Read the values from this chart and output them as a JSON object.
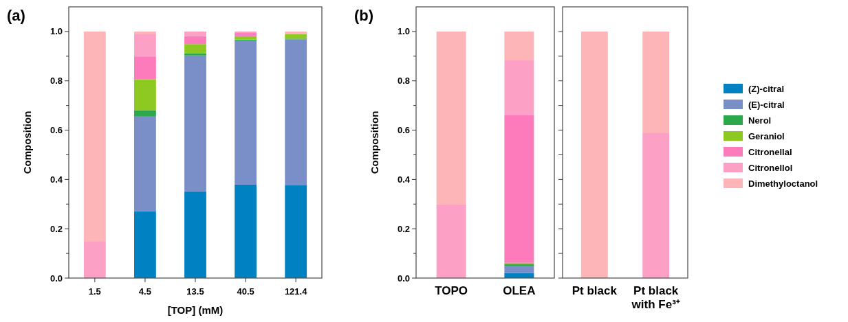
{
  "chart_data": [
    {
      "type": "bar",
      "title": "(a)",
      "xlabel": "[TOP] (mM)",
      "ylabel": "Composition",
      "stacked": true,
      "categories": [
        "1.5",
        "4.5",
        "13.5",
        "40.5",
        "121.4"
      ],
      "ylim": [
        0,
        1.1
      ],
      "yticks": [
        {
          "value": 0,
          "label": "0.0"
        },
        {
          "value": 0.1,
          "label": null
        },
        {
          "value": 0.2,
          "label": "0.2"
        },
        {
          "value": 0.3,
          "label": null
        },
        {
          "value": 0.4,
          "label": "0.4"
        },
        {
          "value": 0.5,
          "label": null
        },
        {
          "value": 0.6,
          "label": "0.6"
        },
        {
          "value": 0.7,
          "label": null
        },
        {
          "value": 0.8,
          "label": "0.8"
        },
        {
          "value": 0.9,
          "label": null
        },
        {
          "value": 1,
          "label": "1.0"
        }
      ],
      "series": [
        {
          "color": "#0081c2",
          "values": [
            0,
            0.271,
            0.352,
            0.379,
            0.376
          ]
        },
        {
          "color": "#7a8fc8",
          "values": [
            0,
            0.384,
            0.551,
            0.584,
            0.592
          ]
        },
        {
          "color": "#2ba84a",
          "values": [
            0,
            0.026,
            0.008,
            0.004,
            0.003
          ]
        },
        {
          "color": "#8dc921",
          "values": [
            0,
            0.125,
            0.038,
            0.014,
            0.019
          ]
        },
        {
          "color": "#fe7bbb",
          "values": [
            0,
            0.093,
            0.032,
            0.013,
            0
          ]
        },
        {
          "color": "#fca0c6",
          "values": [
            0.15,
            0.092,
            0.019,
            0.006,
            0
          ]
        },
        {
          "color": "#fdb5b7",
          "values": [
            0.85,
            0.009,
            0,
            0,
            0.01
          ]
        }
      ]
    },
    {
      "type": "bar",
      "title": "(b)",
      "ylabel": "Composition",
      "stacked": true,
      "categories": [
        "TOPO",
        "OLEA"
      ],
      "ylim": [
        0,
        1.1
      ],
      "yticks": [
        {
          "value": 0,
          "label": "0.0"
        },
        {
          "value": 0.1,
          "label": null
        },
        {
          "value": 0.2,
          "label": "0.2"
        },
        {
          "value": 0.3,
          "label": null
        },
        {
          "value": 0.4,
          "label": "0.4"
        },
        {
          "value": 0.5,
          "label": null
        },
        {
          "value": 0.6,
          "label": "0.6"
        },
        {
          "value": 0.7,
          "label": null
        },
        {
          "value": 0.8,
          "label": "0.8"
        },
        {
          "value": 0.9,
          "label": null
        },
        {
          "value": 1,
          "label": "1.0"
        }
      ],
      "series": [
        {
          "color": "#0081c2",
          "values": [
            0,
            0.02
          ]
        },
        {
          "color": "#7a8fc8",
          "values": [
            0,
            0.028
          ]
        },
        {
          "color": "#2ba84a",
          "values": [
            0,
            0.009
          ]
        },
        {
          "color": "#8dc921",
          "values": [
            0,
            0.005
          ]
        },
        {
          "color": "#fe7bbb",
          "values": [
            0,
            0.598
          ]
        },
        {
          "color": "#fca0c6",
          "values": [
            0.3,
            0.225
          ]
        },
        {
          "color": "#fdb5b7",
          "values": [
            0.7,
            0.115
          ]
        }
      ]
    },
    {
      "type": "bar",
      "stacked": true,
      "tick_labels": "x",
      "legend": "right",
      "categories": [
        "Pt black",
        "Pt black with Fe³⁺"
      ],
      "ylim": [
        0,
        1.1
      ],
      "yticks": [
        0,
        0.1,
        0.2,
        0.3,
        0.4,
        0.5,
        0.6,
        0.7,
        0.8,
        0.9,
        1
      ],
      "series": [
        {
          "name": "(Z)-citral",
          "color": "#0081c2",
          "values": [
            0,
            0
          ]
        },
        {
          "name": "(E)-citral",
          "color": "#7a8fc8",
          "values": [
            0,
            0
          ]
        },
        {
          "name": "Nerol",
          "color": "#2ba84a",
          "values": [
            0,
            0
          ]
        },
        {
          "name": "Geraniol",
          "color": "#8dc921",
          "values": [
            0,
            0
          ]
        },
        {
          "name": "Citronellal",
          "color": "#fe7bbb",
          "values": [
            0,
            0
          ]
        },
        {
          "name": "Citronellol",
          "color": "#fca0c6",
          "values": [
            0,
            0.59
          ]
        },
        {
          "name": "Dimethyloctanol",
          "color": "#fdb5b7",
          "values": [
            1,
            0.41
          ]
        }
      ]
    }
  ]
}
